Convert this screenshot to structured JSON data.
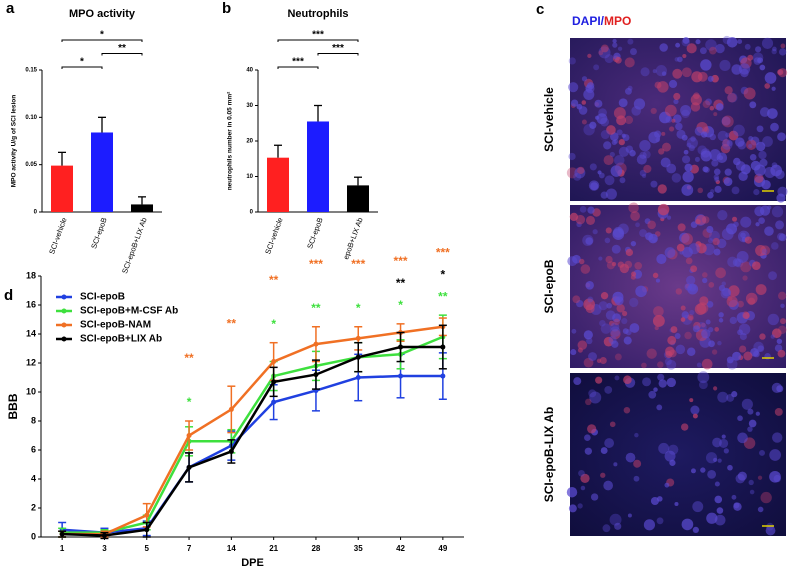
{
  "chart_data": [
    {
      "type": "bar",
      "panel": "a",
      "title": "MPO activity",
      "ylabel": "MPO activity U/g of SCI lesion",
      "categories": [
        "SCI-vehicle",
        "SCI-epoB",
        "SCI-epoB+LIX Ab"
      ],
      "values": [
        0.049,
        0.084,
        0.008
      ],
      "errors": [
        0.014,
        0.016,
        0.008
      ],
      "colors": [
        "#ff2020",
        "#1c1cff",
        "#000000"
      ],
      "ylim": [
        0,
        0.15
      ],
      "yticks": [
        0,
        0.05,
        {
          "value": 0.1,
          "label": "0.10"
        },
        0.15
      ],
      "significance": [
        {
          "label": "*",
          "between": [
            "SCI-vehicle",
            "SCI-epoB+LIX Ab"
          ]
        },
        {
          "label": "**",
          "between": [
            "SCI-epoB",
            "SCI-epoB+LIX Ab"
          ]
        },
        {
          "label": "*",
          "between": [
            "SCI-vehicle",
            "SCI-epoB"
          ]
        }
      ]
    },
    {
      "type": "bar",
      "panel": "b",
      "title": "Neutrophils",
      "ylabel": "neutrophils number in 0.05 mm²",
      "categories": [
        "SCI-vehicle",
        "SCI-epoB",
        "epoB+LIX Ab"
      ],
      "values": [
        15.3,
        25.5,
        7.5
      ],
      "errors": [
        3.5,
        4.5,
        2.3
      ],
      "colors": [
        "#ff2020",
        "#1c1cff",
        "#000000"
      ],
      "ylim": [
        0,
        40
      ],
      "yticks": [
        0,
        10,
        20,
        30,
        40
      ],
      "significance": [
        {
          "label": "***",
          "between": [
            "SCI-vehicle",
            "epoB+LIX Ab"
          ]
        },
        {
          "label": "***",
          "between": [
            "SCI-epoB",
            "epoB+LIX Ab"
          ]
        },
        {
          "label": "***",
          "between": [
            "SCI-vehicle",
            "SCI-epoB"
          ]
        }
      ]
    },
    {
      "type": "line",
      "panel": "d",
      "xlabel": "DPE",
      "ylabel": "BBB",
      "categories": [
        "1",
        "3",
        "5",
        "7",
        "14",
        "21",
        "28",
        "35",
        "42",
        "49"
      ],
      "ylim": [
        0,
        18
      ],
      "yticks": [
        0,
        2,
        4,
        6,
        8,
        10,
        12,
        14,
        16,
        18
      ],
      "series": [
        {
          "name": "SCI-epoB",
          "color": "#2040e0",
          "values": [
            0.5,
            0.3,
            0.6,
            4.8,
            6.3,
            9.3,
            10.1,
            11.0,
            11.1,
            11.1
          ],
          "errors": [
            0.5,
            0.3,
            0.5,
            1.0,
            1.0,
            1.2,
            1.4,
            1.6,
            1.5,
            1.6
          ],
          "significance": [
            null,
            null,
            null,
            null,
            null,
            null,
            null,
            null,
            null,
            null
          ]
        },
        {
          "name": "SCI-epoB+M-CSF Ab",
          "color": "#3ee03e",
          "values": [
            0.3,
            0.3,
            1.0,
            6.6,
            6.6,
            11.1,
            11.8,
            12.4,
            12.6,
            13.8
          ],
          "errors": [
            0.3,
            0.2,
            0.5,
            1.0,
            0.8,
            1.0,
            1.0,
            1.0,
            1.0,
            1.5
          ],
          "significance": [
            null,
            null,
            null,
            "*",
            null,
            "*",
            "**",
            "*",
            "*",
            "**"
          ]
        },
        {
          "name": "SCI-epoB-NAM",
          "color": "#f07024",
          "values": [
            0.2,
            0.2,
            1.5,
            7.0,
            8.8,
            12.1,
            13.3,
            13.7,
            14.1,
            14.5
          ],
          "errors": [
            0.2,
            0.2,
            0.8,
            1.0,
            1.6,
            1.3,
            1.2,
            0.8,
            0.6,
            0.6
          ],
          "significance": [
            null,
            null,
            null,
            "**",
            "**",
            "**",
            "***",
            "***",
            "***",
            "***"
          ]
        },
        {
          "name": "SCI-epoB+LIX Ab",
          "color": "#000000",
          "values": [
            0.2,
            0.1,
            0.5,
            4.8,
            5.9,
            10.7,
            11.2,
            12.4,
            13.1,
            13.1
          ],
          "errors": [
            0.2,
            0.2,
            0.5,
            1.0,
            0.8,
            1.0,
            1.0,
            1.0,
            1.0,
            1.5
          ],
          "significance": [
            null,
            null,
            null,
            null,
            null,
            null,
            null,
            null,
            "**",
            "*"
          ]
        }
      ]
    }
  ],
  "image_panel": {
    "panel": "c",
    "title_parts": [
      {
        "text": "DAPI",
        "color": "#2020e0"
      },
      {
        "text": "/",
        "color": "#2020e0"
      },
      {
        "text": "MPO",
        "color": "#e02020"
      }
    ],
    "rows": [
      "SCI-vehicle",
      "SCI-epoB",
      "SCI-epoB-LIX Ab"
    ]
  }
}
